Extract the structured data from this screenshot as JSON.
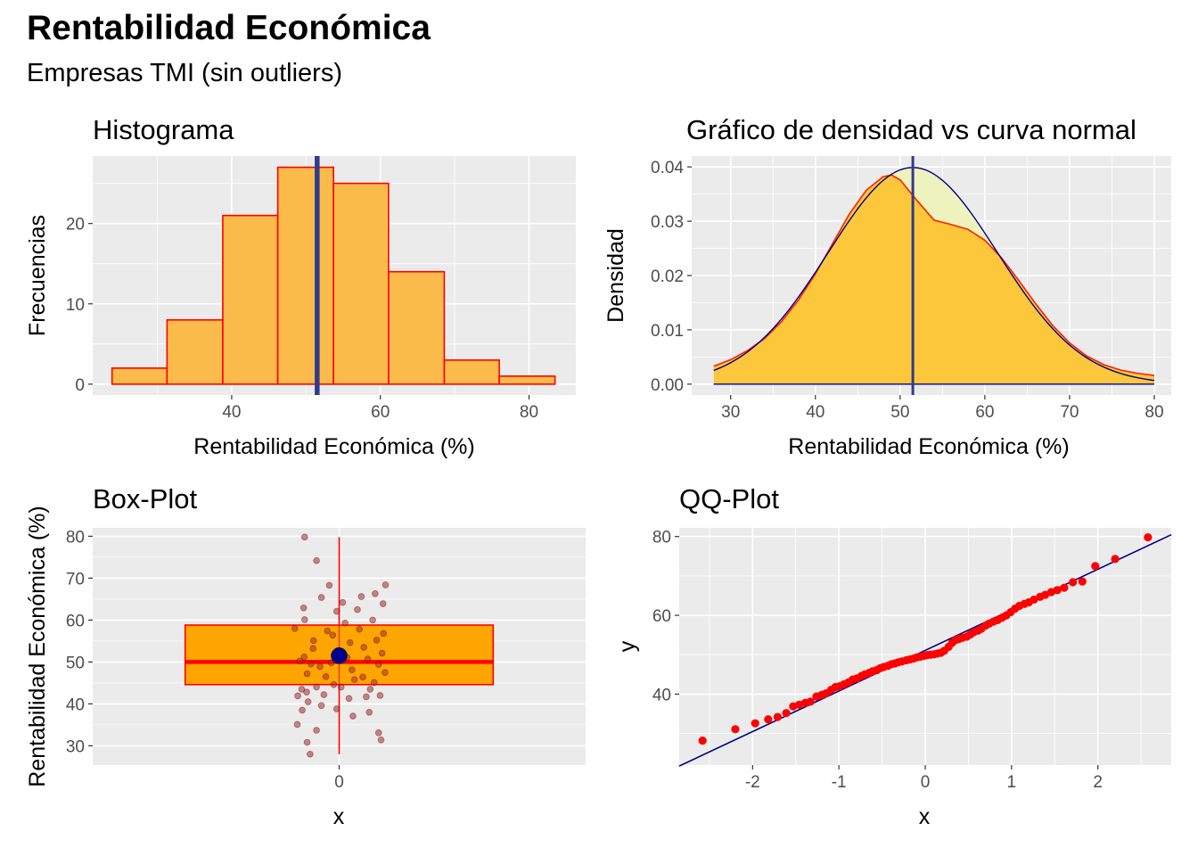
{
  "figure": {
    "title": "Rentabilidad Económica",
    "subtitle": "Empresas TMI (sin outliers)"
  },
  "colors": {
    "panel_bg": "#ebebeb",
    "grid": "#ffffff",
    "bar_fill": "#fbbb4b",
    "bar_outline": "#ff0000",
    "mean_line": "#2f3b8b",
    "density_fill": "#fcc73a",
    "density_line": "#ff1f00",
    "normal_line": "#00008b",
    "normal_fill": "#eef2bd",
    "box_fill": "#ffa500",
    "jitter_point": "#a52a2a",
    "mean_point": "#00008b",
    "qq_point": "#ff0000",
    "qq_line": "#00008b"
  },
  "chart_data": [
    {
      "id": "histogram",
      "type": "bar",
      "title": "Histograma",
      "xlabel": "Rentabilidad Económica (%)",
      "ylabel": "Frecuencias",
      "xlim": [
        21.3,
        86.3
      ],
      "ylim": [
        -1.35,
        28.4
      ],
      "xticks": [
        40,
        60,
        80
      ],
      "yticks": [
        0,
        10,
        20
      ],
      "grid": true,
      "bins": [
        {
          "x0": 23.9,
          "x1": 31.3,
          "count": 2
        },
        {
          "x0": 31.3,
          "x1": 38.8,
          "count": 8
        },
        {
          "x0": 38.8,
          "x1": 46.2,
          "count": 21
        },
        {
          "x0": 46.2,
          "x1": 53.7,
          "count": 27
        },
        {
          "x0": 53.7,
          "x1": 61.1,
          "count": 25
        },
        {
          "x0": 61.1,
          "x1": 68.6,
          "count": 14
        },
        {
          "x0": 68.6,
          "x1": 76.0,
          "count": 3
        },
        {
          "x0": 76.0,
          "x1": 83.5,
          "count": 1
        }
      ],
      "mean": 51.5
    },
    {
      "id": "density",
      "type": "area",
      "title": "Gráfico de densidad vs curva normal",
      "xlabel": "Rentabilidad Económica (%)",
      "ylabel": "Densidad",
      "xlim": [
        25.4,
        82.0
      ],
      "ylim": [
        -0.002,
        0.042
      ],
      "xticks": [
        30,
        40,
        50,
        60,
        70,
        80
      ],
      "yticks": [
        0.0,
        0.01,
        0.02,
        0.03,
        0.04
      ],
      "ytick_labels": [
        "0.00",
        "0.01",
        "0.02",
        "0.03",
        "0.04"
      ],
      "grid": true,
      "series": [
        {
          "name": "",
          "kind": "kernel density",
          "x": [
            28,
            30,
            32,
            34,
            36,
            38,
            40,
            42,
            44,
            46,
            48,
            49,
            50,
            52,
            54,
            56,
            58,
            60,
            62,
            64,
            66,
            68,
            70,
            72,
            74,
            76,
            78,
            80
          ],
          "y": [
            0.0033,
            0.0045,
            0.0062,
            0.0084,
            0.0115,
            0.0155,
            0.0203,
            0.0258,
            0.0313,
            0.0357,
            0.0382,
            0.0385,
            0.0376,
            0.0338,
            0.0302,
            0.0294,
            0.0285,
            0.0265,
            0.0232,
            0.0191,
            0.0148,
            0.0108,
            0.0076,
            0.0052,
            0.0036,
            0.0026,
            0.002,
            0.0016
          ]
        },
        {
          "name": "",
          "kind": "normal",
          "mean": 51.5,
          "sd": 10.0,
          "x_from": 28,
          "x_to": 80
        }
      ],
      "mean": 51.5
    },
    {
      "id": "boxplot",
      "type": "scatter",
      "title": "Box-Plot",
      "xlabel": "x",
      "ylabel": "Rentabilidad Económica (%)",
      "xlim": [
        -0.5,
        0.5
      ],
      "ylim": [
        25.4,
        82.0
      ],
      "xticks": [
        0
      ],
      "yticks": [
        30,
        40,
        50,
        60,
        70,
        80
      ],
      "grid": true,
      "box": {
        "min": 28.0,
        "q1": 44.6,
        "median": 50.0,
        "q3": 58.8,
        "max": 79.8,
        "mean": 51.5,
        "width": 0.625
      },
      "jitter_points": [
        [
          -0.07,
          79.8
        ],
        [
          -0.046,
          74.2
        ],
        [
          -0.036,
          65.4
        ],
        [
          -0.072,
          62.9
        ],
        [
          -0.07,
          60.1
        ],
        [
          -0.052,
          55.1
        ],
        [
          -0.024,
          57.4
        ],
        [
          -0.071,
          51.2
        ],
        [
          -0.057,
          49.5
        ],
        [
          -0.039,
          48.9
        ],
        [
          -0.016,
          49.8
        ],
        [
          -0.065,
          47.2
        ],
        [
          -0.027,
          46.5
        ],
        [
          -0.076,
          43.5
        ],
        [
          -0.046,
          44.0
        ],
        [
          -0.011,
          44.6
        ],
        [
          -0.084,
          41.9
        ],
        [
          -0.063,
          40.5
        ],
        [
          -0.075,
          38.5
        ],
        [
          -0.036,
          39.6
        ],
        [
          -0.085,
          35.1
        ],
        [
          -0.046,
          33.7
        ],
        [
          -0.065,
          30.8
        ],
        [
          -0.059,
          28.0
        ],
        [
          -0.02,
          68.3
        ],
        [
          -0.005,
          62.1
        ],
        [
          -0.013,
          56.4
        ],
        [
          -0.003,
          52.7
        ],
        [
          0.007,
          64.2
        ],
        [
          0.012,
          59.3
        ],
        [
          0.016,
          51.1
        ],
        [
          0.022,
          54.6
        ],
        [
          0.026,
          48.1
        ],
        [
          0.031,
          45.8
        ],
        [
          0.02,
          41.3
        ],
        [
          0.028,
          37.1
        ],
        [
          0.045,
          65.6
        ],
        [
          0.041,
          57.8
        ],
        [
          0.05,
          53.5
        ],
        [
          0.058,
          50.7
        ],
        [
          0.048,
          46.4
        ],
        [
          0.055,
          41.7
        ],
        [
          0.061,
          38.0
        ],
        [
          0.073,
          66.3
        ],
        [
          0.068,
          60.0
        ],
        [
          0.076,
          55.2
        ],
        [
          0.08,
          49.4
        ],
        [
          0.071,
          45.1
        ],
        [
          0.083,
          42.0
        ],
        [
          0.08,
          33.1
        ],
        [
          0.085,
          31.4
        ],
        [
          0.089,
          63.9
        ],
        [
          0.09,
          56.8
        ],
        [
          0.087,
          52.1
        ],
        [
          0.094,
          68.4
        ],
        [
          0.093,
          47.5
        ],
        [
          -0.09,
          58.0
        ],
        [
          -0.08,
          50.2
        ],
        [
          -0.066,
          42.8
        ],
        [
          -0.053,
          53.2
        ],
        [
          -0.031,
          42.2
        ],
        [
          -0.005,
          38.8
        ],
        [
          0.004,
          44.0
        ],
        [
          0.037,
          62.5
        ],
        [
          0.063,
          43.5
        ]
      ]
    },
    {
      "id": "qqplot",
      "type": "scatter",
      "title": "QQ-Plot",
      "xlabel": "x",
      "ylabel": "y",
      "xlim": [
        -2.85,
        2.85
      ],
      "ylim": [
        22.0,
        82.2
      ],
      "xticks": [
        -2,
        -1,
        0,
        1,
        2
      ],
      "yticks": [
        40,
        60,
        80
      ],
      "grid": true,
      "reference_line": {
        "intercept": 51.1,
        "slope": 10.3
      },
      "points": [
        [
          -2.58,
          28.2
        ],
        [
          -2.2,
          31.1
        ],
        [
          -1.97,
          32.6
        ],
        [
          -1.82,
          33.6
        ],
        [
          -1.71,
          34.2
        ],
        [
          -1.61,
          35.2
        ],
        [
          -1.53,
          36.9
        ],
        [
          -1.46,
          37.3
        ],
        [
          -1.39,
          37.8
        ],
        [
          -1.33,
          38.1
        ],
        [
          -1.26,
          39.4
        ],
        [
          -1.2,
          39.8
        ],
        [
          -1.15,
          40.2
        ],
        [
          -1.09,
          41.1
        ],
        [
          -1.04,
          41.8
        ],
        [
          -0.99,
          42.0
        ],
        [
          -0.94,
          42.5
        ],
        [
          -0.89,
          43.0
        ],
        [
          -0.84,
          43.7
        ],
        [
          -0.79,
          44.0
        ],
        [
          -0.74,
          44.6
        ],
        [
          -0.7,
          45.0
        ],
        [
          -0.65,
          45.4
        ],
        [
          -0.61,
          45.8
        ],
        [
          -0.56,
          46.1
        ],
        [
          -0.52,
          46.6
        ],
        [
          -0.48,
          46.9
        ],
        [
          -0.43,
          47.2
        ],
        [
          -0.39,
          47.6
        ],
        [
          -0.35,
          47.8
        ],
        [
          -0.31,
          48.1
        ],
        [
          -0.27,
          48.3
        ],
        [
          -0.22,
          48.6
        ],
        [
          -0.18,
          48.8
        ],
        [
          -0.14,
          49.0
        ],
        [
          -0.1,
          49.3
        ],
        [
          -0.06,
          49.5
        ],
        [
          -0.02,
          49.7
        ],
        [
          0.02,
          49.9
        ],
        [
          0.06,
          50.0
        ],
        [
          0.1,
          50.1
        ],
        [
          0.14,
          50.3
        ],
        [
          0.18,
          50.5
        ],
        [
          0.22,
          51.0
        ],
        [
          0.27,
          52.0
        ],
        [
          0.31,
          53.0
        ],
        [
          0.35,
          53.7
        ],
        [
          0.39,
          54.0
        ],
        [
          0.43,
          54.3
        ],
        [
          0.48,
          54.6
        ],
        [
          0.52,
          55.1
        ],
        [
          0.56,
          55.7
        ],
        [
          0.61,
          56.1
        ],
        [
          0.65,
          56.6
        ],
        [
          0.7,
          57.4
        ],
        [
          0.74,
          57.9
        ],
        [
          0.79,
          58.4
        ],
        [
          0.84,
          58.8
        ],
        [
          0.89,
          59.4
        ],
        [
          0.94,
          60.0
        ],
        [
          0.99,
          60.8
        ],
        [
          1.04,
          61.7
        ],
        [
          1.09,
          62.4
        ],
        [
          1.15,
          62.9
        ],
        [
          1.2,
          63.3
        ],
        [
          1.26,
          64.0
        ],
        [
          1.33,
          64.7
        ],
        [
          1.39,
          65.2
        ],
        [
          1.46,
          65.9
        ],
        [
          1.53,
          66.4
        ],
        [
          1.61,
          67.0
        ],
        [
          1.71,
          68.4
        ],
        [
          1.82,
          68.6
        ],
        [
          1.97,
          72.5
        ],
        [
          2.2,
          74.3
        ],
        [
          2.58,
          79.8
        ]
      ]
    }
  ]
}
